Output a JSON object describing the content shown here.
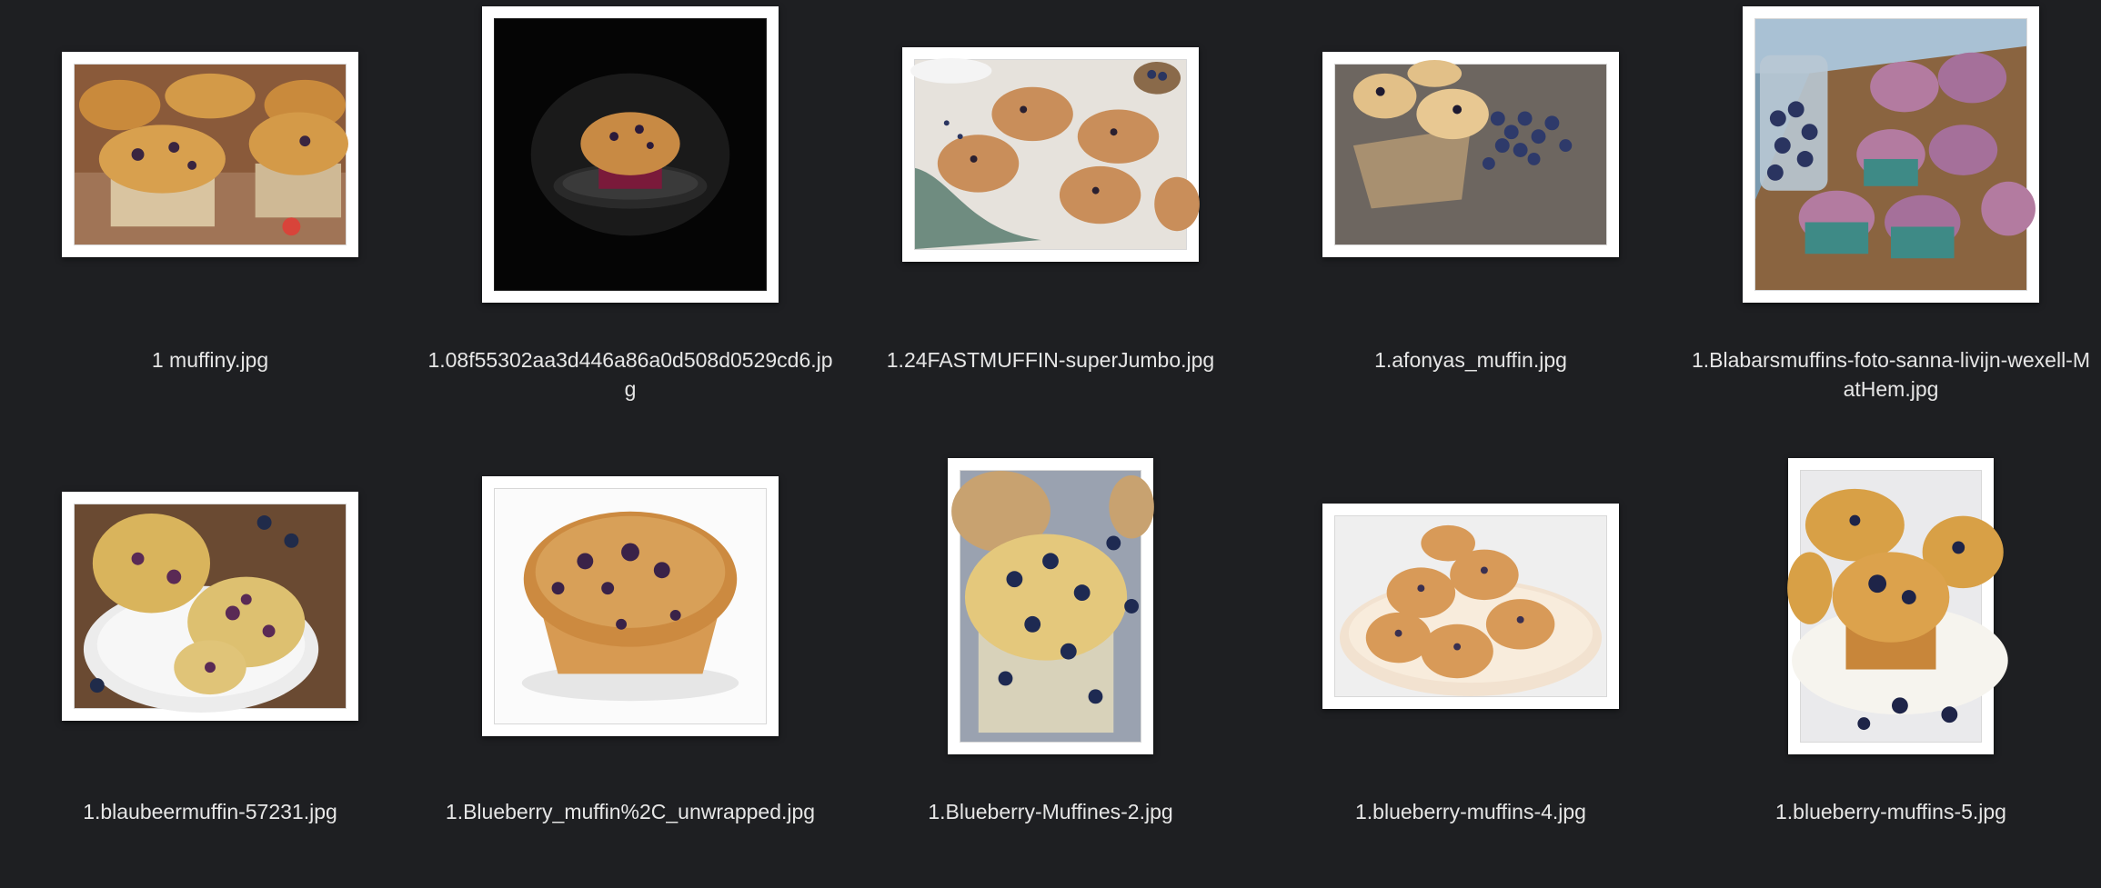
{
  "files": [
    {
      "name": "1 muffiny.jpg",
      "icon": "muffin-tray-photo-icon"
    },
    {
      "name": "1.08f55302aa3d446a86a0d508d0529cd6.jpg",
      "icon": "dark-muffin-photo-icon"
    },
    {
      "name": "1.24FASTMUFFIN-superJumbo.jpg",
      "icon": "muffins-on-rack-photo-icon"
    },
    {
      "name": "1.afonyas_muffin.jpg",
      "icon": "muffins-with-berries-photo-icon"
    },
    {
      "name": "1.Blabarsmuffins-foto-sanna-livijn-wexell-MatHem.jpg",
      "icon": "muffins-jar-photo-icon"
    },
    {
      "name": "1.blaubeermuffin-57231.jpg",
      "icon": "broken-muffin-photo-icon"
    },
    {
      "name": "1.Blueberry_muffin%2C_unwrapped.jpg",
      "icon": "single-muffin-photo-icon"
    },
    {
      "name": "1.Blueberry-Muffines-2.jpg",
      "icon": "muffin-closeup-photo-icon"
    },
    {
      "name": "1.blueberry-muffins-4.jpg",
      "icon": "muffin-pile-photo-icon"
    },
    {
      "name": "1.blueberry-muffins-5.jpg",
      "icon": "muffins-on-plate-photo-icon"
    }
  ]
}
